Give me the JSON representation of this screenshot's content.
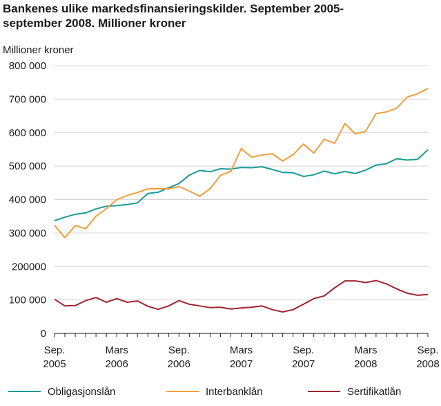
{
  "chart_data": {
    "type": "line",
    "title_lines": [
      "Bankenes ulike markedsfinansieringskilder. September 2005-",
      "september 2008. Millioner kroner"
    ],
    "ylabel": "Millioner kroner",
    "ylim": [
      0,
      800000
    ],
    "yticks": [
      "0",
      "100 000",
      "200000",
      "300 000",
      "400 000",
      "500 000",
      "600 000",
      "700 000",
      "800 000"
    ],
    "xticks": [
      {
        "index": 0,
        "line1": "Sep.",
        "line2": "2005"
      },
      {
        "index": 6,
        "line1": "Mars",
        "line2": "2006"
      },
      {
        "index": 12,
        "line1": "Sep.",
        "line2": "2006"
      },
      {
        "index": 18,
        "line1": "Mars",
        "line2": "2007"
      },
      {
        "index": 24,
        "line1": "Sep.",
        "line2": "2007"
      },
      {
        "index": 30,
        "line1": "Mars",
        "line2": "2008"
      },
      {
        "index": 36,
        "line1": "Sep.",
        "line2": "2008"
      }
    ],
    "grid": true,
    "legend_position": "bottom",
    "series": [
      {
        "name": "Obligasjonslån",
        "color": "#1a9a96",
        "values": [
          337000,
          347000,
          356000,
          360000,
          372000,
          380000,
          382000,
          385000,
          390000,
          418000,
          422000,
          435000,
          448000,
          473000,
          487000,
          483000,
          492000,
          491000,
          496000,
          495000,
          498000,
          490000,
          481000,
          480000,
          469000,
          474000,
          485000,
          477000,
          484000,
          478000,
          488000,
          503000,
          507000,
          522000,
          518000,
          520000,
          549000
        ]
      },
      {
        "name": "Interbanklån",
        "color": "#f39c3c",
        "values": [
          323000,
          286000,
          322000,
          313000,
          350000,
          373000,
          400000,
          412000,
          421000,
          432000,
          432000,
          432000,
          439000,
          425000,
          410000,
          432000,
          472000,
          485000,
          552000,
          527000,
          533000,
          537000,
          515000,
          534000,
          566000,
          539000,
          580000,
          568000,
          627000,
          596000,
          604000,
          657000,
          662000,
          673000,
          706000,
          716000,
          732000
        ]
      },
      {
        "name": "Sertifikatlån",
        "color": "#a1242d",
        "values": [
          102000,
          82000,
          83000,
          98000,
          107000,
          93000,
          104000,
          93000,
          97000,
          81000,
          72000,
          82000,
          98000,
          87000,
          82000,
          77000,
          78000,
          73000,
          76000,
          78000,
          82000,
          71000,
          64000,
          71000,
          87000,
          104000,
          112000,
          136000,
          157000,
          157000,
          152000,
          158000,
          148000,
          133000,
          120000,
          114000,
          116000
        ]
      }
    ]
  }
}
